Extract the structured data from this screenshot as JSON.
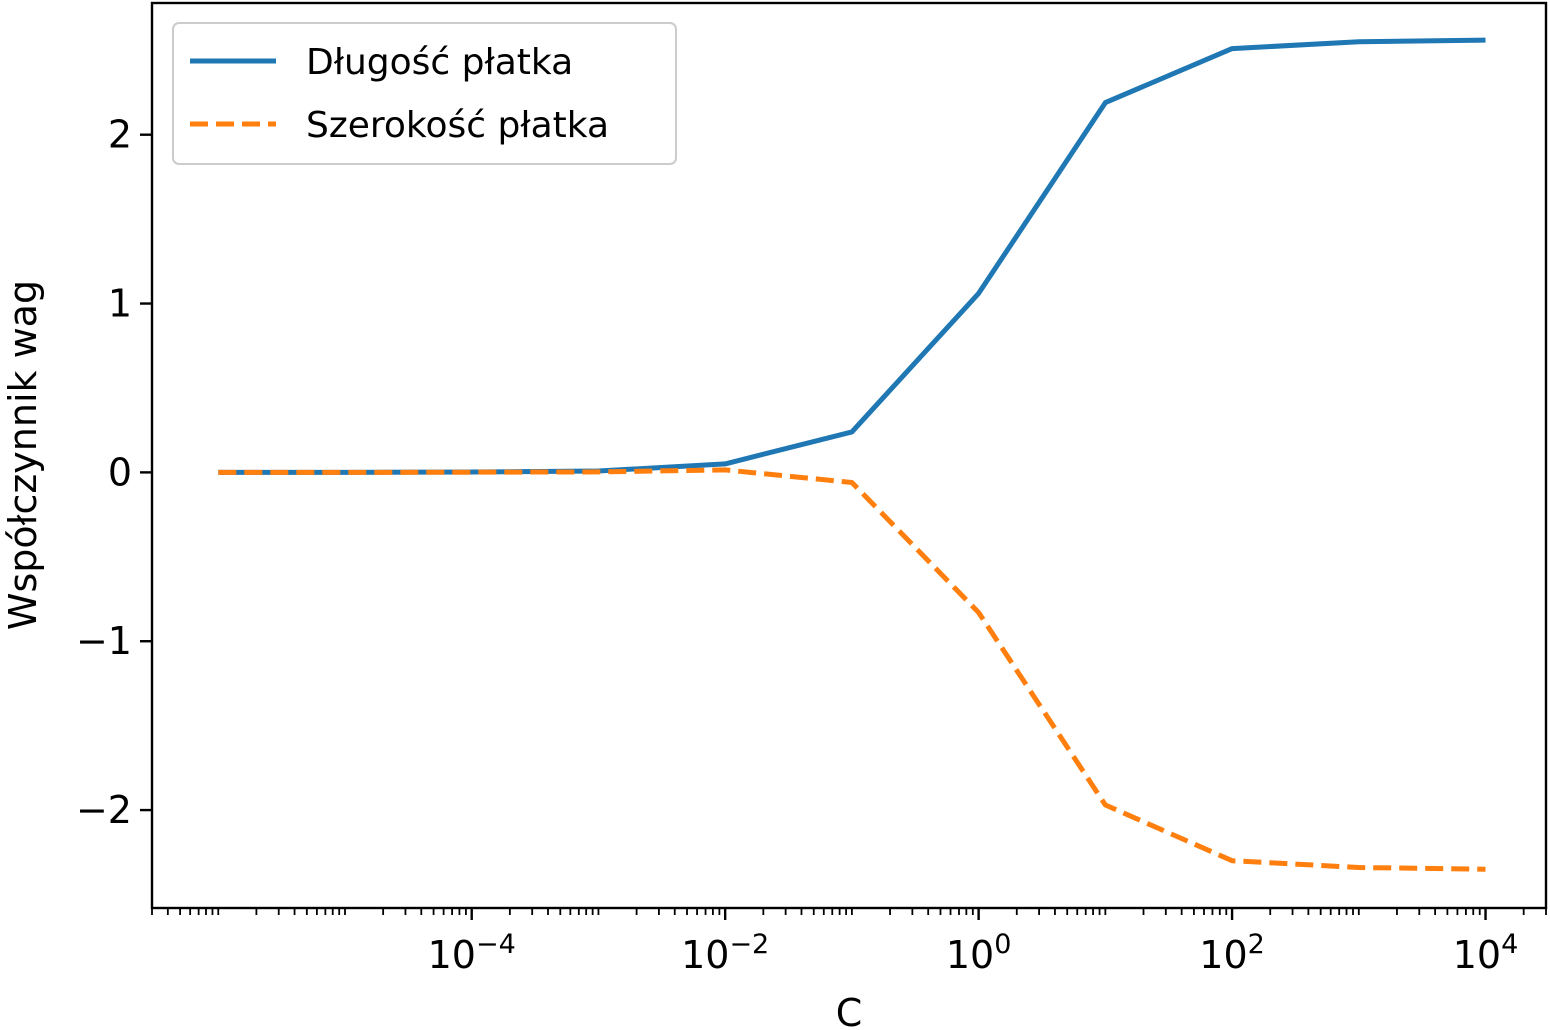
{
  "chart_data": {
    "type": "line",
    "xscale": "log",
    "xlabel": "C",
    "ylabel": "Współczynnik wag",
    "xlim": [
      3e-07,
      30000
    ],
    "ylim": [
      -2.58,
      2.78
    ],
    "x": [
      1e-06,
      1e-05,
      0.0001,
      0.001,
      0.01,
      0.1,
      1,
      10,
      100,
      1000,
      10000
    ],
    "xticks": [
      {
        "value": 0.0001,
        "base": "10",
        "exp": "−4"
      },
      {
        "value": 0.01,
        "base": "10",
        "exp": "−2"
      },
      {
        "value": 1,
        "base": "10",
        "exp": "0"
      },
      {
        "value": 100,
        "base": "10",
        "exp": "2"
      },
      {
        "value": 10000,
        "base": "10",
        "exp": "4"
      }
    ],
    "yticks": [
      {
        "value": 2,
        "label": "2"
      },
      {
        "value": 1,
        "label": "1"
      },
      {
        "value": 0,
        "label": "0"
      },
      {
        "value": -1,
        "label": "−1"
      },
      {
        "value": -2,
        "label": "−2"
      }
    ],
    "grid": false,
    "legend_position": "top-left",
    "series": [
      {
        "name": "Długość płatka",
        "color": "#1f77b4",
        "style": "solid",
        "values": [
          0.0,
          0.0,
          0.002,
          0.008,
          0.05,
          0.24,
          1.06,
          2.19,
          2.51,
          2.55,
          2.56
        ]
      },
      {
        "name": "Szerokość płatka",
        "color": "#ff7f0e",
        "style": "dashed",
        "values": [
          0.0,
          0.0,
          0.001,
          0.003,
          0.015,
          -0.06,
          -0.83,
          -1.97,
          -2.3,
          -2.34,
          -2.35
        ]
      }
    ]
  }
}
